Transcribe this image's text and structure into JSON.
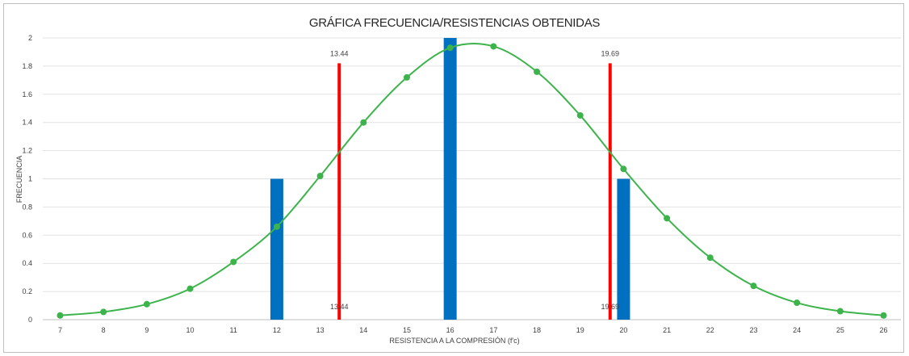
{
  "chart_data": {
    "type": "bar",
    "title": "GRÁFICA FRECUENCIA/RESISTENCIAS OBTENIDAS",
    "xlabel": "RESISTENCIA A LA COMPRESIÓN (f'c)",
    "ylabel": "FRECUENCIA",
    "xlim": [
      6.6,
      26.4
    ],
    "ylim": [
      0,
      2
    ],
    "y_ticks": [
      "0",
      "0.2",
      "0.4",
      "0.6",
      "0.8",
      "1",
      "1.2",
      "1.4",
      "1.6",
      "1.8",
      "2"
    ],
    "x_ticks": [
      "7",
      "8",
      "9",
      "10",
      "11",
      "12",
      "13",
      "14",
      "15",
      "16",
      "17",
      "18",
      "19",
      "20",
      "21",
      "22",
      "23",
      "24",
      "25",
      "26"
    ],
    "grid": true,
    "series": [
      {
        "type": "bar",
        "color": "#0070c0",
        "points": [
          {
            "x": 12,
            "y": 1
          },
          {
            "x": 16,
            "y": 2
          },
          {
            "x": 20,
            "y": 1
          }
        ]
      },
      {
        "type": "line",
        "color": "#3cb44b",
        "smooth": true,
        "points": [
          {
            "x": 7,
            "y": 0.03
          },
          {
            "x": 8,
            "y": 0.055
          },
          {
            "x": 9,
            "y": 0.11
          },
          {
            "x": 10,
            "y": 0.22
          },
          {
            "x": 11,
            "y": 0.41
          },
          {
            "x": 12,
            "y": 0.66
          },
          {
            "x": 13,
            "y": 1.02
          },
          {
            "x": 14,
            "y": 1.4
          },
          {
            "x": 15,
            "y": 1.72
          },
          {
            "x": 16,
            "y": 1.93
          },
          {
            "x": 17,
            "y": 1.94
          },
          {
            "x": 18,
            "y": 1.76
          },
          {
            "x": 19,
            "y": 1.45
          },
          {
            "x": 20,
            "y": 1.07
          },
          {
            "x": 21,
            "y": 0.72
          },
          {
            "x": 22,
            "y": 0.44
          },
          {
            "x": 23,
            "y": 0.24
          },
          {
            "x": 24,
            "y": 0.12
          },
          {
            "x": 25,
            "y": 0.06
          },
          {
            "x": 26,
            "y": 0.03
          }
        ]
      },
      {
        "type": "vline",
        "color": "#ff0000",
        "points": [
          {
            "x": 13.44,
            "y": 1.82,
            "label": "13.44"
          },
          {
            "x": 19.69,
            "y": 1.82,
            "label": "19.69"
          }
        ]
      }
    ]
  }
}
